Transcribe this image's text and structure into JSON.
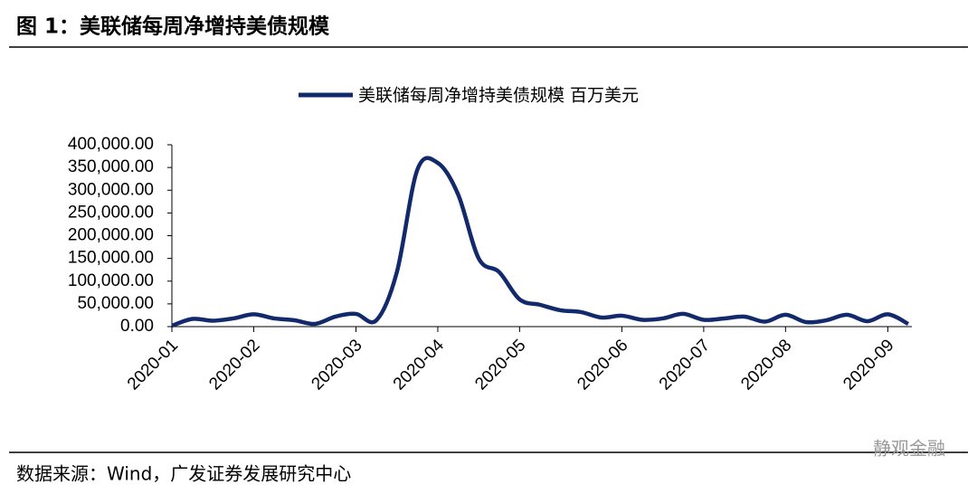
{
  "title": "图 1：美联储每周净增持美债规模",
  "source": "数据来源：Wind，广发证券发展研究中心",
  "watermark": "静观金融",
  "chart_data": {
    "type": "line",
    "categories": [
      "2020-01",
      null,
      null,
      null,
      "2020-02",
      null,
      null,
      null,
      null,
      "2020-03",
      null,
      null,
      null,
      "2020-04",
      null,
      null,
      null,
      "2020-05",
      null,
      null,
      null,
      null,
      "2020-06",
      null,
      null,
      null,
      "2020-07",
      null,
      null,
      null,
      "2020-08",
      null,
      null,
      null,
      null,
      "2020-09",
      null
    ],
    "series": [
      {
        "name": "美联储每周净增持美债规模 百万美元",
        "color": "#12296b",
        "values": [
          2000,
          17000,
          13000,
          18000,
          27000,
          18000,
          14000,
          6000,
          22000,
          28000,
          14000,
          120000,
          345000,
          360000,
          290000,
          150000,
          120000,
          60000,
          48000,
          36000,
          32000,
          20000,
          24000,
          15000,
          18000,
          28000,
          15000,
          18000,
          22000,
          11000,
          26000,
          10000,
          14000,
          26000,
          12000,
          27000,
          6000
        ]
      }
    ],
    "ylim": [
      0,
      400000
    ],
    "yticks": [
      {
        "value": 0,
        "label": "0.00"
      },
      {
        "value": 50000,
        "label": "50,000.00"
      },
      {
        "value": 100000,
        "label": "100,000.00"
      },
      {
        "value": 150000,
        "label": "150,000.00"
      },
      {
        "value": 200000,
        "label": "200,000.00"
      },
      {
        "value": 250000,
        "label": "250,000.00"
      },
      {
        "value": 300000,
        "label": "300,000.00"
      },
      {
        "value": 350000,
        "label": "350,000.00"
      },
      {
        "value": 400000,
        "label": "400,000.00"
      }
    ],
    "legend": "top"
  }
}
